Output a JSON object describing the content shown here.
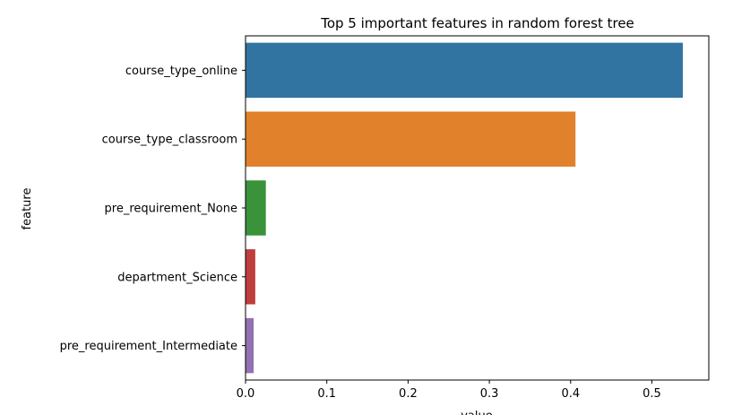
{
  "chart_data": {
    "type": "bar",
    "orientation": "horizontal",
    "title": "Top 5 important features in random forest tree",
    "xlabel": "value",
    "ylabel": "feature",
    "categories": [
      "course_type_online",
      "course_type_classroom",
      "pre_requirement_None",
      "department_Science",
      "pre_requirement_Intermediate"
    ],
    "values": [
      0.538,
      0.406,
      0.025,
      0.012,
      0.01
    ],
    "colors": [
      "#3274a1",
      "#e1812c",
      "#3a923a",
      "#c03d3e",
      "#9372b2"
    ],
    "xlim": [
      0,
      0.57
    ],
    "xticks": [
      0.0,
      0.1,
      0.2,
      0.3,
      0.4,
      0.5
    ],
    "xtick_labels": [
      "0.0",
      "0.1",
      "0.2",
      "0.3",
      "0.4",
      "0.5"
    ],
    "grid": false,
    "legend": "none"
  }
}
